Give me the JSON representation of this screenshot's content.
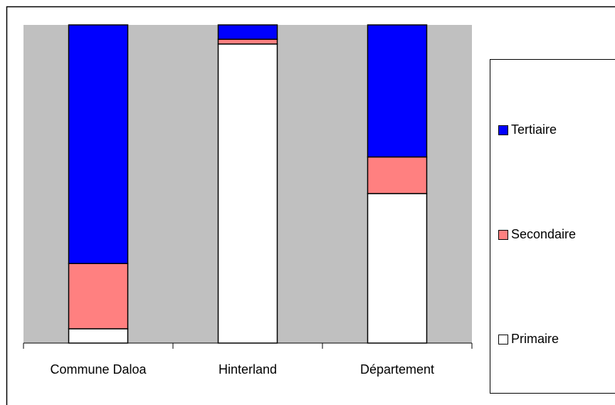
{
  "chart_data": {
    "type": "stacked_bar_100",
    "categories": [
      "Commune Daloa",
      "Hinterland",
      "Département"
    ],
    "series": [
      {
        "name": "Primaire",
        "color": "#ffffff",
        "values": [
          4.5,
          94,
          47
        ]
      },
      {
        "name": "Secondaire",
        "color": "#ff8080",
        "values": [
          20.5,
          1.5,
          11.5
        ]
      },
      {
        "name": "Tertiaire",
        "color": "#0000ff",
        "values": [
          75,
          4.5,
          41.5
        ]
      }
    ],
    "ylim": [
      0,
      100
    ],
    "legend": "right",
    "plot_background": "#c0c0c0"
  }
}
